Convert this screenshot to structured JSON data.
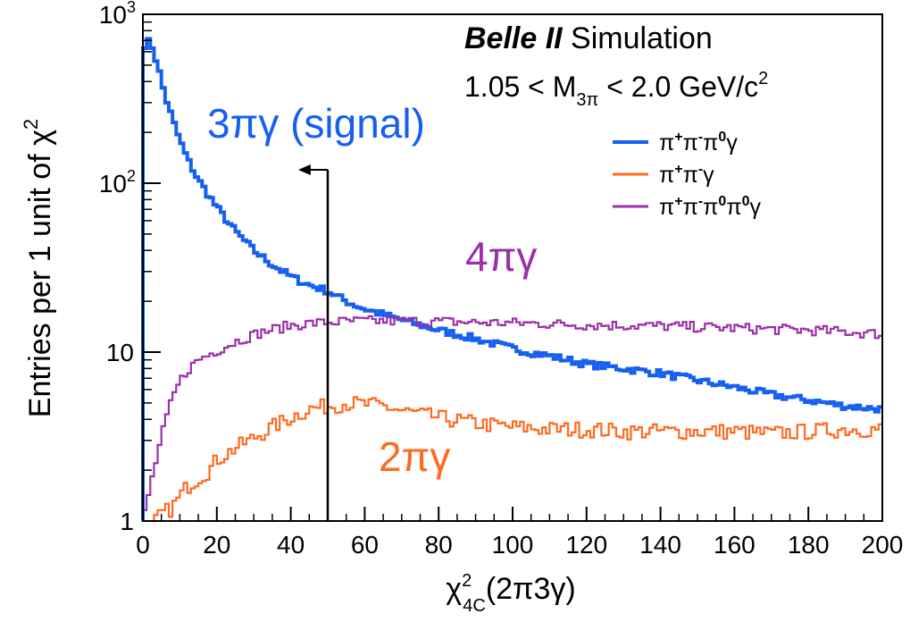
{
  "chart_data": {
    "type": "line",
    "step": true,
    "log_y": true,
    "xlim": [
      0,
      200
    ],
    "ylim": [
      1,
      1000
    ],
    "x_ticks": [
      "0",
      "20",
      "40",
      "60",
      "80",
      "100",
      "120",
      "140",
      "160",
      "180",
      "200"
    ],
    "x_tick_values": [
      0,
      20,
      40,
      60,
      80,
      100,
      120,
      140,
      160,
      180,
      200
    ],
    "y_ticks": [
      {
        "value": 1,
        "base": "1",
        "exp": ""
      },
      {
        "value": 10,
        "base": "10",
        "exp": ""
      },
      {
        "value": 100,
        "base": "10",
        "exp": "2"
      },
      {
        "value": 1000,
        "base": "10",
        "exp": "3"
      }
    ],
    "ylabel": {
      "main": "Entries per 1 unit of χ",
      "sup": "2"
    },
    "xlabel": {
      "chi": "χ",
      "sup": "2",
      "sub": "4C",
      "rest": "(2π3γ)"
    },
    "header": {
      "bold": "Belle II",
      "rest": " Simulation",
      "range": {
        "left": "1.05 < M",
        "sub": "3π",
        "right": " < 2.0 GeV/c",
        "sup": "2"
      }
    },
    "annotations": {
      "signal": "3πγ (signal)",
      "four_pi": "4πγ",
      "two_pi": "2πγ"
    },
    "cut": {
      "x": 50,
      "y_top": 120,
      "arrow_to_x": 42
    },
    "legend": {
      "position": "top-right",
      "entries": [
        {
          "series": 0,
          "parts": [
            [
              "π",
              ""
            ],
            [
              "+",
              "sup"
            ],
            [
              "π",
              ""
            ],
            [
              "-",
              "sup"
            ],
            [
              "π",
              ""
            ],
            [
              "0",
              "sup"
            ],
            [
              "γ",
              ""
            ]
          ]
        },
        {
          "series": 1,
          "parts": [
            [
              "π",
              ""
            ],
            [
              "+",
              "sup"
            ],
            [
              "π",
              ""
            ],
            [
              "-",
              "sup"
            ],
            [
              "γ",
              ""
            ]
          ]
        },
        {
          "series": 2,
          "parts": [
            [
              "π",
              ""
            ],
            [
              "+",
              "sup"
            ],
            [
              "π",
              ""
            ],
            [
              "-",
              "sup"
            ],
            [
              "π",
              ""
            ],
            [
              "0",
              "sup"
            ],
            [
              "π",
              ""
            ],
            [
              "0",
              "sup"
            ],
            [
              "γ",
              ""
            ]
          ]
        }
      ]
    },
    "colors": {
      "signal": "#1560f0",
      "two_pi": "#ff6a1f",
      "four_pi": "#9b30a8"
    },
    "series": [
      {
        "color": "#1560f0",
        "x": [
          0,
          2,
          4,
          6,
          8,
          10,
          12,
          15,
          20,
          25,
          30,
          35,
          40,
          45,
          50,
          55,
          60,
          70,
          80,
          90,
          100,
          110,
          120,
          130,
          140,
          150,
          160,
          170,
          180,
          190,
          200
        ],
        "y": [
          650,
          700,
          500,
          330,
          240,
          180,
          140,
          105,
          72,
          52,
          40,
          33,
          28,
          25,
          23,
          20,
          18,
          15.5,
          13.5,
          12,
          10.5,
          9.5,
          8.5,
          8,
          7.5,
          6.8,
          6.2,
          5.6,
          5.2,
          4.8,
          4.6
        ]
      },
      {
        "color": "#ff6a1f",
        "x": [
          2,
          5,
          8,
          10,
          12,
          15,
          18,
          20,
          25,
          30,
          35,
          40,
          45,
          50,
          55,
          60,
          65,
          70,
          80,
          90,
          100,
          110,
          120,
          130,
          140,
          150,
          160,
          170,
          180,
          190,
          200
        ],
        "y": [
          0.9,
          1.1,
          1.2,
          1.4,
          1.6,
          1.8,
          2.0,
          2.3,
          2.7,
          3.1,
          3.6,
          4.1,
          4.6,
          4.8,
          5.0,
          4.9,
          4.8,
          4.5,
          4.1,
          3.8,
          3.6,
          3.5,
          3.5,
          3.4,
          3.4,
          3.4,
          3.4,
          3.3,
          3.4,
          3.5,
          3.5
        ]
      },
      {
        "color": "#9b30a8",
        "x": [
          0,
          2,
          4,
          6,
          8,
          10,
          12,
          15,
          20,
          25,
          30,
          35,
          40,
          45,
          50,
          55,
          60,
          70,
          80,
          90,
          100,
          110,
          120,
          130,
          140,
          150,
          160,
          170,
          180,
          190,
          200
        ],
        "y": [
          1,
          1.6,
          2.5,
          3.8,
          5.3,
          6.7,
          7.8,
          9.0,
          10.2,
          11.5,
          12.7,
          13.6,
          14.4,
          14.8,
          15.0,
          15.2,
          15.3,
          15.3,
          15.2,
          15.0,
          14.9,
          14.7,
          14.5,
          14.4,
          14.3,
          14.1,
          13.9,
          13.7,
          13.5,
          13.2,
          12.8
        ]
      }
    ]
  }
}
